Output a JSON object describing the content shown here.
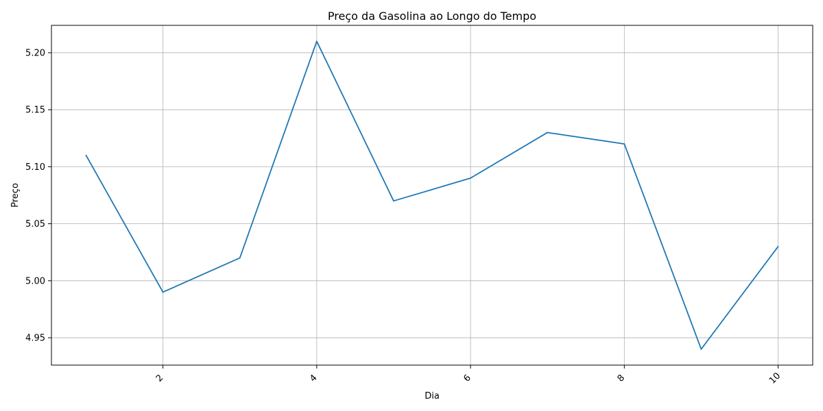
{
  "chart_data": {
    "type": "line",
    "title": "Preço da Gasolina ao Longo do Tempo",
    "xlabel": "Dia",
    "ylabel": "Preço",
    "x": [
      1,
      2,
      3,
      4,
      5,
      6,
      7,
      8,
      9,
      10
    ],
    "series": [
      {
        "values": [
          5.11,
          4.99,
          5.02,
          5.21,
          5.07,
          5.09,
          5.13,
          5.12,
          4.94,
          5.03
        ],
        "color": "#1f77b4"
      }
    ],
    "xlim": [
      0.55,
      10.45
    ],
    "ylim": [
      4.926,
      5.224
    ],
    "xticks": [
      2,
      4,
      6,
      8,
      10
    ],
    "xtick_labels": [
      "2",
      "4",
      "6",
      "8",
      "10"
    ],
    "xtick_rotation": 45,
    "yticks": [
      4.95,
      5.0,
      5.05,
      5.1,
      5.15,
      5.2
    ],
    "ytick_labels": [
      "4.95",
      "5.00",
      "5.05",
      "5.10",
      "5.15",
      "5.20"
    ],
    "grid": true,
    "legend": "none"
  }
}
